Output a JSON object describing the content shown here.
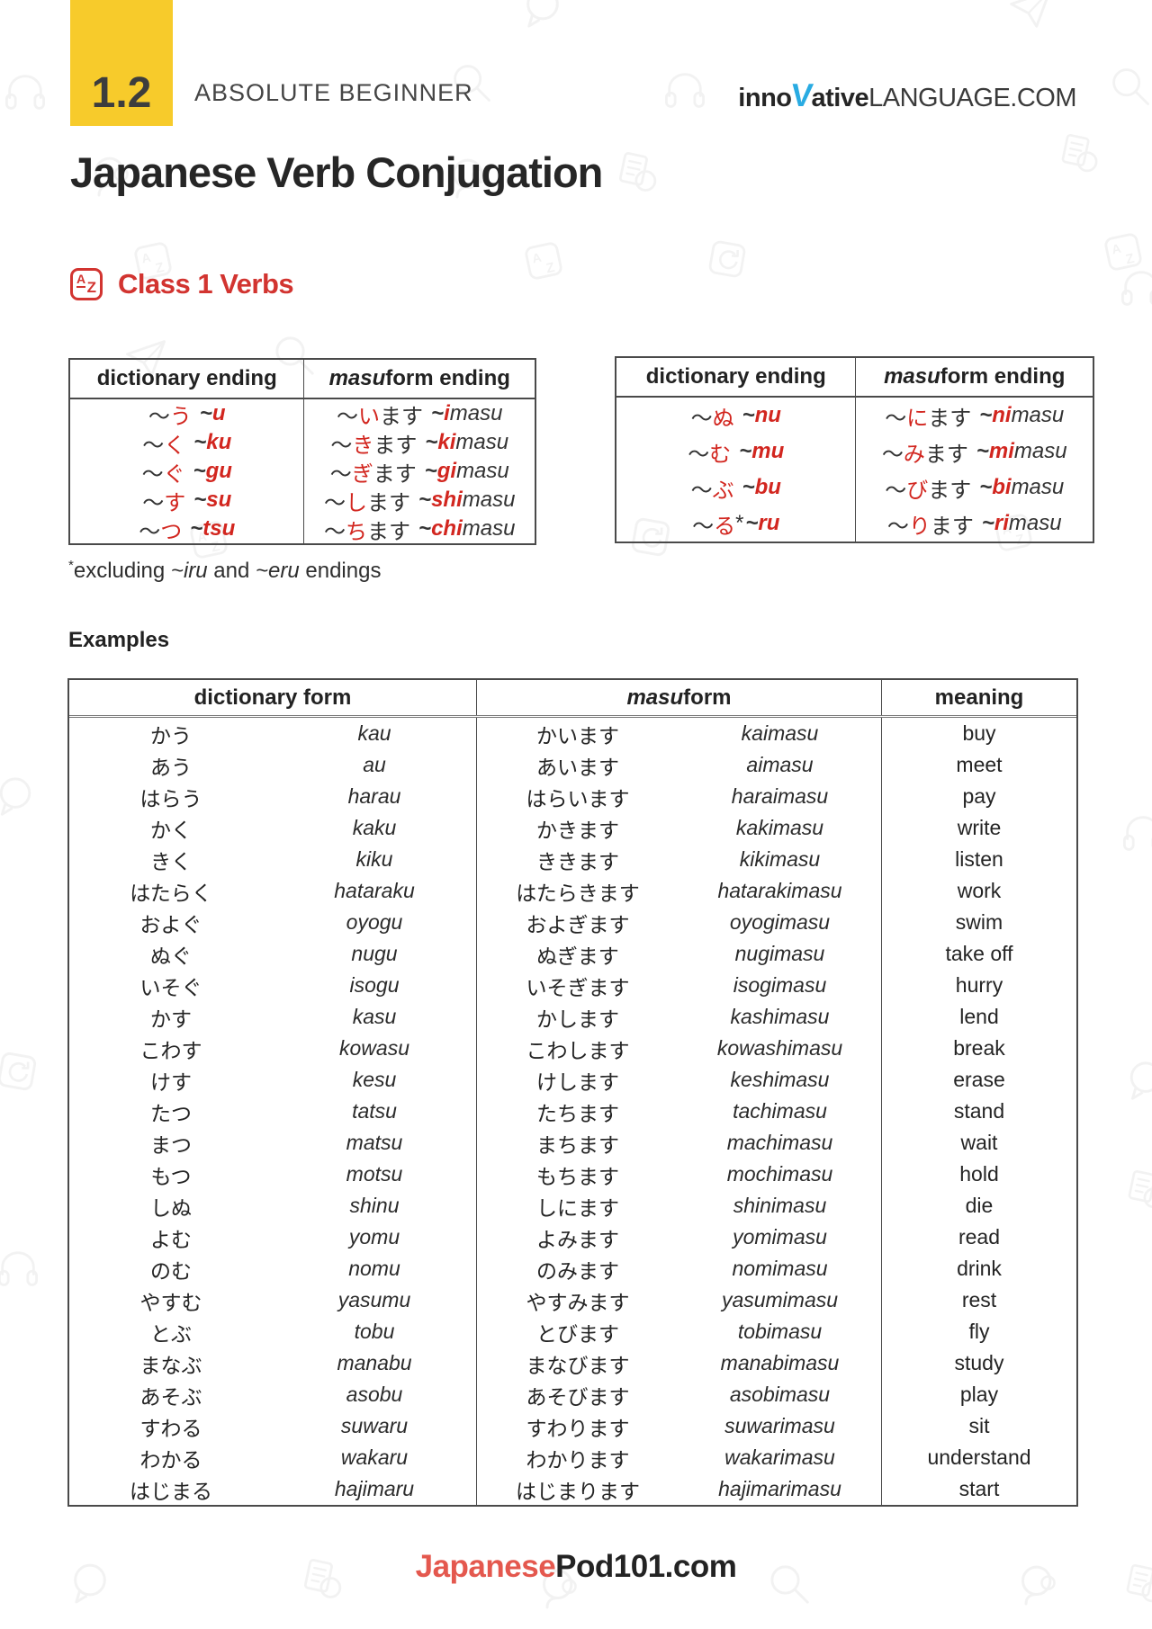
{
  "page": {
    "lesson_number": "1.2",
    "level": "ABSOLUTE BEGINNER",
    "logo": {
      "inno": "inno",
      "v": "V",
      "ative": "ative",
      "domain": "LANGUAGE.COM"
    },
    "title": "Japanese Verb Conjugation",
    "section_heading": "Class 1 Verbs",
    "az_badge": {
      "a": "A",
      "z": "Z"
    },
    "footnote": {
      "star": "*",
      "pre": "excluding ",
      "iru": "~iru",
      "mid": " and ",
      "eru": "~eru",
      "post": " endings"
    },
    "examples_label": "Examples",
    "footer": {
      "brand_red": "Japanese",
      "brand_black": "Pod101.com"
    }
  },
  "colors": {
    "accent_red": "#d2261f",
    "heading_red": "#d23430",
    "yellow": "#F7CB2B",
    "logo_blue": "#29ABE2",
    "footer_red": "#E4584E"
  },
  "ending_tables": [
    {
      "headers": {
        "col1": "dictionary ending",
        "col2_italic": "masu",
        "col2_rest": " form ending"
      },
      "rows": [
        {
          "dict_kana": "う",
          "dict_rom": "u",
          "masu_kana": "い",
          "masu_rom": "i",
          "star": false
        },
        {
          "dict_kana": "く",
          "dict_rom": "ku",
          "masu_kana": "き",
          "masu_rom": "ki",
          "star": false
        },
        {
          "dict_kana": "ぐ",
          "dict_rom": "gu",
          "masu_kana": "ぎ",
          "masu_rom": "gi",
          "star": false
        },
        {
          "dict_kana": "す",
          "dict_rom": "su",
          "masu_kana": "し",
          "masu_rom": "shi",
          "star": false
        },
        {
          "dict_kana": "つ",
          "dict_rom": "tsu",
          "masu_kana": "ち",
          "masu_rom": "chi",
          "star": false
        }
      ]
    },
    {
      "headers": {
        "col1": "dictionary ending",
        "col2_italic": "masu",
        "col2_rest": " form ending"
      },
      "rows": [
        {
          "dict_kana": "ぬ",
          "dict_rom": "nu",
          "masu_kana": "に",
          "masu_rom": "ni",
          "star": false
        },
        {
          "dict_kana": "む",
          "dict_rom": "mu",
          "masu_kana": "み",
          "masu_rom": "mi",
          "star": false
        },
        {
          "dict_kana": "ぶ",
          "dict_rom": "bu",
          "masu_kana": "び",
          "masu_rom": "bi",
          "star": false
        },
        {
          "dict_kana": "る",
          "dict_rom": "ru",
          "masu_kana": "り",
          "masu_rom": "ri",
          "star": true
        }
      ]
    }
  ],
  "examples_table": {
    "headers": {
      "col1": "dictionary form",
      "col2_italic": "masu",
      "col2_rest": " form",
      "col3": "meaning"
    },
    "tilde": "〜",
    "rows": [
      [
        "かう",
        "kau",
        "かいます",
        "kaimasu",
        "buy"
      ],
      [
        "あう",
        "au",
        "あいます",
        "aimasu",
        "meet"
      ],
      [
        "はらう",
        "harau",
        "はらいます",
        "haraimasu",
        "pay"
      ],
      [
        "かく",
        "kaku",
        "かきます",
        "kakimasu",
        "write"
      ],
      [
        "きく",
        "kiku",
        "ききます",
        "kikimasu",
        "listen"
      ],
      [
        "はたらく",
        "hataraku",
        "はたらきます",
        "hatarakimasu",
        "work"
      ],
      [
        "およぐ",
        "oyogu",
        "およぎます",
        "oyogimasu",
        "swim"
      ],
      [
        "ぬぐ",
        "nugu",
        "ぬぎます",
        "nugimasu",
        "take off"
      ],
      [
        "いそぐ",
        "isogu",
        "いそぎます",
        "isogimasu",
        "hurry"
      ],
      [
        "かす",
        "kasu",
        "かします",
        "kashimasu",
        "lend"
      ],
      [
        "こわす",
        "kowasu",
        "こわします",
        "kowashimasu",
        "break"
      ],
      [
        "けす",
        "kesu",
        "けします",
        "keshimasu",
        "erase"
      ],
      [
        "たつ",
        "tatsu",
        "たちます",
        "tachimasu",
        "stand"
      ],
      [
        "まつ",
        "matsu",
        "まちます",
        "machimasu",
        "wait"
      ],
      [
        "もつ",
        "motsu",
        "もちます",
        "mochimasu",
        "hold"
      ],
      [
        "しぬ",
        "shinu",
        "しにます",
        "shinimasu",
        "die"
      ],
      [
        "よむ",
        "yomu",
        "よみます",
        "yomimasu",
        "read"
      ],
      [
        "のむ",
        "nomu",
        "のみます",
        "nomimasu",
        "drink"
      ],
      [
        "やすむ",
        "yasumu",
        "やすみます",
        "yasumimasu",
        "rest"
      ],
      [
        "とぶ",
        "tobu",
        "とびます",
        "tobimasu",
        "fly"
      ],
      [
        "まなぶ",
        "manabu",
        "まなびます",
        "manabimasu",
        "study"
      ],
      [
        "あそぶ",
        "asobu",
        "あそびます",
        "asobimasu",
        "play"
      ],
      [
        "すわる",
        "suwaru",
        "すわります",
        "suwarimasu",
        "sit"
      ],
      [
        "わかる",
        "wakaru",
        "わかります",
        "wakarimasu",
        "understand"
      ],
      [
        "はじまる",
        "hajimaru",
        "はじまります",
        "hajimarimasu",
        "start"
      ]
    ]
  },
  "watermark_icons": [
    "headphones-icon",
    "chat-bubble-icon",
    "magnifier-icon",
    "head-speech-icon",
    "az-card-icon",
    "refresh-card-icon",
    "document-coin-icon",
    "paper-plane-icon"
  ]
}
